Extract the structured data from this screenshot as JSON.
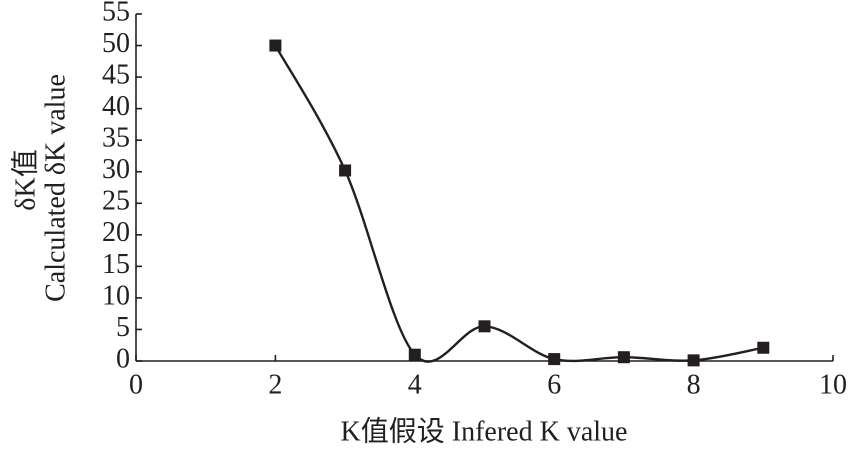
{
  "chart_data": {
    "type": "line",
    "smooth": true,
    "marker": "square",
    "color": "#231f20",
    "x": [
      2,
      3,
      4,
      5,
      6,
      7,
      8,
      9
    ],
    "values": [
      50,
      30.2,
      1,
      5.5,
      0.3,
      0.6,
      0.1,
      2.1
    ],
    "xlabel": "K值假设 Infered K value",
    "ylabel": [
      "δK值",
      "Calculated δK value"
    ],
    "xlim": [
      0,
      10
    ],
    "xticks": [
      0,
      2,
      4,
      6,
      8,
      10
    ],
    "ylim": [
      0,
      55
    ],
    "yticks": [
      0,
      5,
      10,
      15,
      20,
      25,
      30,
      35,
      40,
      45,
      50,
      55
    ]
  }
}
